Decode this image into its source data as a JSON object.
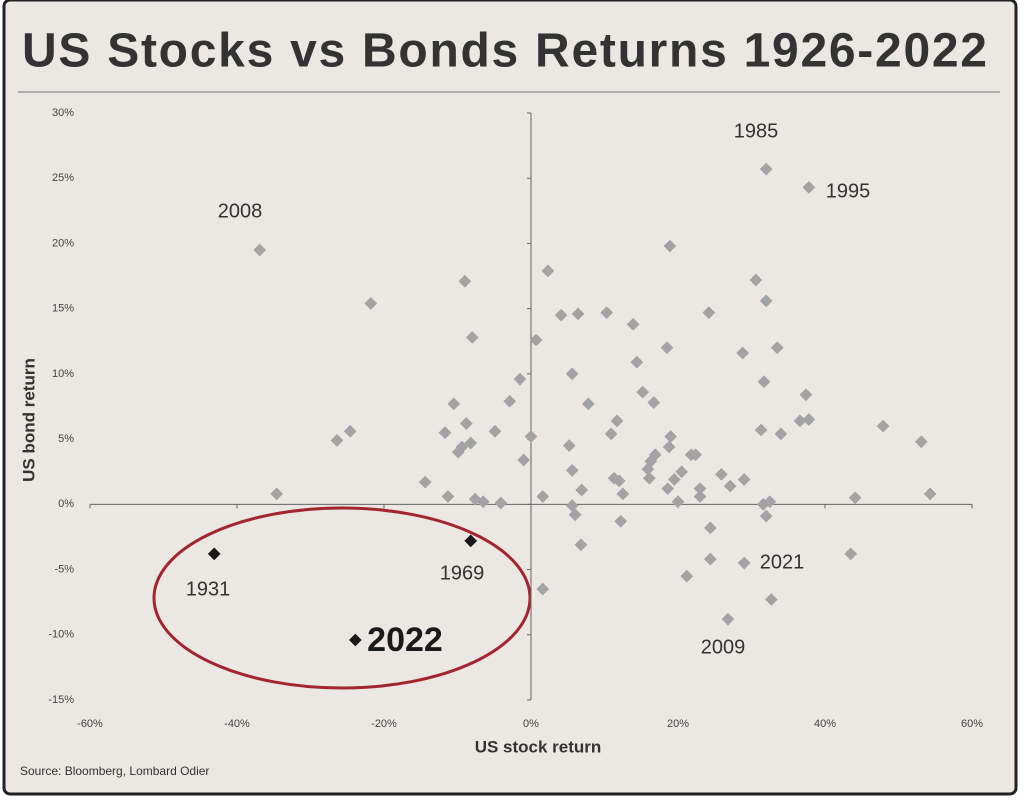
{
  "chart_data": {
    "type": "scatter",
    "title": "US Stocks vs Bonds Returns 1926-2022",
    "x_label": "US stock return",
    "y_label": "US bond return",
    "source": "Source: Bloomberg, Lombard Odier",
    "xlim": [
      -60,
      60
    ],
    "ylim": [
      -15,
      30
    ],
    "xticks": [
      {
        "value": -60,
        "label": "-60%"
      },
      {
        "value": -40,
        "label": "-40%"
      },
      {
        "value": -20,
        "label": "-20%"
      },
      {
        "value": 0,
        "label": "0%"
      },
      {
        "value": 20,
        "label": "20%"
      },
      {
        "value": 40,
        "label": "40%"
      },
      {
        "value": 60,
        "label": "60%"
      }
    ],
    "yticks": [
      {
        "value": -15,
        "label": "-15%"
      },
      {
        "value": -10,
        "label": "-10%"
      },
      {
        "value": -5,
        "label": "-5%"
      },
      {
        "value": 0,
        "label": "0%"
      },
      {
        "value": 5,
        "label": "5%"
      },
      {
        "value": 10,
        "label": "10%"
      },
      {
        "value": 15,
        "label": "15%"
      },
      {
        "value": 20,
        "label": "20%"
      },
      {
        "value": 25,
        "label": "25%"
      },
      {
        "value": 30,
        "label": "30%"
      }
    ],
    "series": [
      {
        "color": "#a3a3a3",
        "x": [
          -36.9,
          32.0,
          37.8,
          -21.8,
          -9.0,
          -8.0,
          2.3,
          -34.6,
          -26.4,
          -24.6,
          -14.4,
          -11.7,
          -10.5,
          -9.9,
          -9.4,
          -8.8,
          -8.2,
          -11.3,
          -7.6,
          -6.5,
          -4.9,
          -4.1,
          -2.9,
          -1.5,
          -1.0,
          0,
          0.7,
          1.6,
          1.6,
          4.1,
          6.4,
          5.6,
          5.2,
          5.6,
          5.6,
          6.0,
          6.9,
          6.8,
          7.8,
          10.3,
          10.9,
          11.7,
          11.3,
          12.0,
          12.5,
          12.2,
          13.9,
          14.4,
          15.2,
          15.9,
          16.3,
          16.7,
          16.9,
          16.1,
          18.5,
          18.9,
          19.0,
          18.8,
          18.6,
          19.5,
          20.0,
          20.5,
          21.2,
          21.8,
          22.4,
          23.0,
          23.0,
          24.2,
          24.4,
          24.4,
          25.9,
          26.8,
          27.1,
          29.0,
          28.8,
          29.0,
          30.6,
          31.3,
          31.7,
          32.0,
          31.6,
          32.0,
          32.5,
          32.7,
          33.5,
          34.0,
          36.6,
          37.4,
          37.8,
          43.5,
          44.1,
          47.9,
          53.1,
          54.3
        ],
        "values": [
          19.5,
          25.7,
          24.3,
          15.4,
          17.1,
          12.8,
          17.9,
          0.8,
          4.9,
          5.6,
          1.7,
          5.5,
          7.7,
          4.0,
          4.4,
          6.2,
          4.7,
          0.6,
          0.4,
          0.2,
          5.6,
          0.1,
          7.9,
          9.6,
          3.4,
          5.2,
          12.6,
          0.6,
          -6.5,
          14.5,
          14.6,
          10.0,
          4.5,
          2.6,
          -0.1,
          -0.8,
          1.1,
          -3.1,
          7.7,
          14.7,
          5.4,
          6.4,
          2.0,
          1.8,
          0.8,
          -1.3,
          13.8,
          10.9,
          8.6,
          2.7,
          3.3,
          7.8,
          3.8,
          2.0,
          12.0,
          19.8,
          5.2,
          4.4,
          1.2,
          1.9,
          0.2,
          2.5,
          -5.5,
          3.8,
          3.8,
          1.2,
          0.6,
          14.7,
          -1.8,
          -4.2,
          2.3,
          -8.8,
          1.4,
          1.9,
          11.6,
          -4.5,
          17.2,
          5.7,
          9.4,
          15.6,
          0,
          -0.9,
          0.2,
          -7.3,
          12.0,
          5.4,
          6.4,
          8.4,
          6.5,
          -3.8,
          0.5,
          6.0,
          4.8,
          0.8
        ]
      },
      {
        "color": "#1a1a1a",
        "x": [
          -43.1,
          -8.2,
          -23.9
        ],
        "values": [
          -3.8,
          -2.8,
          -10.4
        ]
      }
    ],
    "annotations": [
      "2008",
      "1985",
      "1995",
      "1931",
      "1969",
      "2022",
      "2021",
      "2009"
    ]
  }
}
